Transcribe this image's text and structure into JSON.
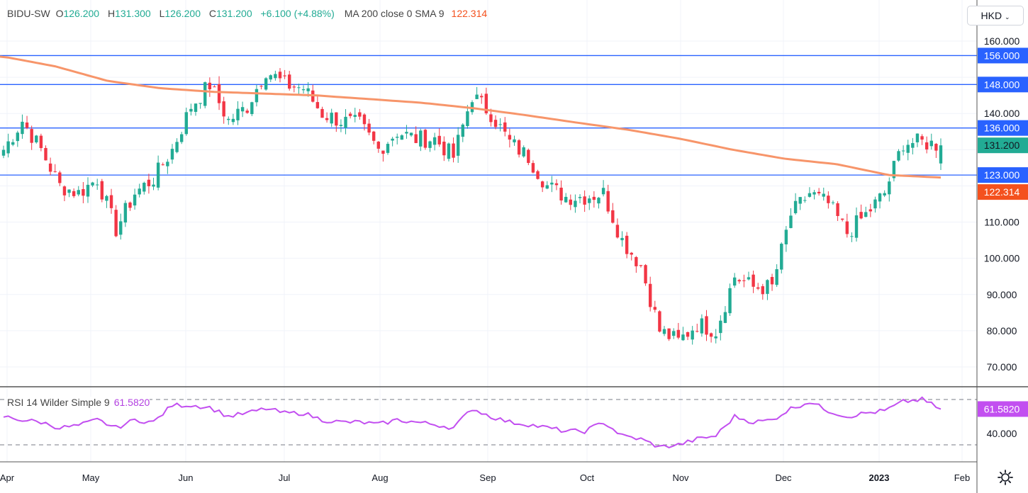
{
  "legend": {
    "symbol": "BIDU-SW",
    "o_label": "O",
    "o": "126.200",
    "h_label": "H",
    "h": "131.300",
    "l_label": "L",
    "l": "126.200",
    "c_label": "C",
    "c": "131.200",
    "change": "+6.100 (+4.88%)",
    "ma_label": "MA 200 close 0 SMA 9",
    "ma_value": "122.314"
  },
  "rsi_legend": {
    "label": "RSI 14 Wilder Simple 9",
    "value": "61.5820"
  },
  "currency": "HKD",
  "colors": {
    "up": "#22ab94",
    "down": "#f23645",
    "hline": "#2962ff",
    "ma": "#f7956a",
    "rsi": "#c24ff0",
    "last": "#22ab94",
    "ma_tag": "#f4511e"
  },
  "chart_data": {
    "type": "candlestick",
    "title": "BIDU-SW",
    "price_axis": {
      "min": 70,
      "max": 160,
      "ticks": [
        "160.000",
        "140.000",
        "110.000",
        "100.000",
        "90.000",
        "80.000",
        "70.000"
      ],
      "tick_values": [
        160,
        140,
        110,
        100,
        90,
        80,
        70
      ]
    },
    "time_axis": {
      "labels": [
        "Apr",
        "May",
        "Jun",
        "Jul",
        "Aug",
        "Sep",
        "Oct",
        "Nov",
        "Dec",
        "2023",
        "Feb"
      ]
    },
    "candles_per_keypoint": 4,
    "close_keypoints": [
      130,
      138,
      130,
      120,
      118,
      122,
      108,
      118,
      122,
      130,
      142,
      148,
      138,
      142,
      152,
      148,
      147,
      140,
      138,
      137,
      130,
      135,
      133,
      133,
      128,
      145,
      140,
      132,
      128,
      120,
      117,
      117,
      118,
      105,
      98,
      80,
      77,
      82,
      80,
      95,
      92,
      92,
      112,
      118,
      115,
      107,
      112,
      118,
      132,
      132,
      131.2
    ],
    "ma200_keypoints": [
      155.7,
      153,
      149,
      147,
      146,
      145.5,
      145,
      144,
      143,
      141.5,
      139.6,
      137.5,
      135.5,
      133,
      130,
      127.5,
      126,
      123,
      122.314
    ],
    "horizontal_lines": [
      {
        "value": 156,
        "label": "156.000"
      },
      {
        "value": 148,
        "label": "148.000"
      },
      {
        "value": 136,
        "label": "136.000"
      },
      {
        "value": 123,
        "label": "123.000"
      }
    ],
    "last_price": {
      "value": 131.2,
      "label": "131.200"
    },
    "ma_last": {
      "value": 122.314,
      "label": "122.314"
    },
    "rsi": {
      "levels": [
        70,
        30
      ],
      "axis_tick": {
        "value": 40,
        "label": "40.000"
      },
      "last": {
        "value": 61.582,
        "label": "61.5820"
      },
      "keypoints": [
        55,
        52,
        50,
        45,
        47,
        52,
        45,
        52,
        50,
        65,
        65,
        63,
        55,
        58,
        62,
        58,
        58,
        52,
        50,
        50,
        48,
        52,
        50,
        48,
        45,
        62,
        55,
        50,
        48,
        45,
        42,
        42,
        50,
        38,
        35,
        28,
        30,
        35,
        38,
        55,
        50,
        52,
        62,
        68,
        60,
        55,
        58,
        60,
        68,
        70,
        61.582
      ]
    }
  }
}
